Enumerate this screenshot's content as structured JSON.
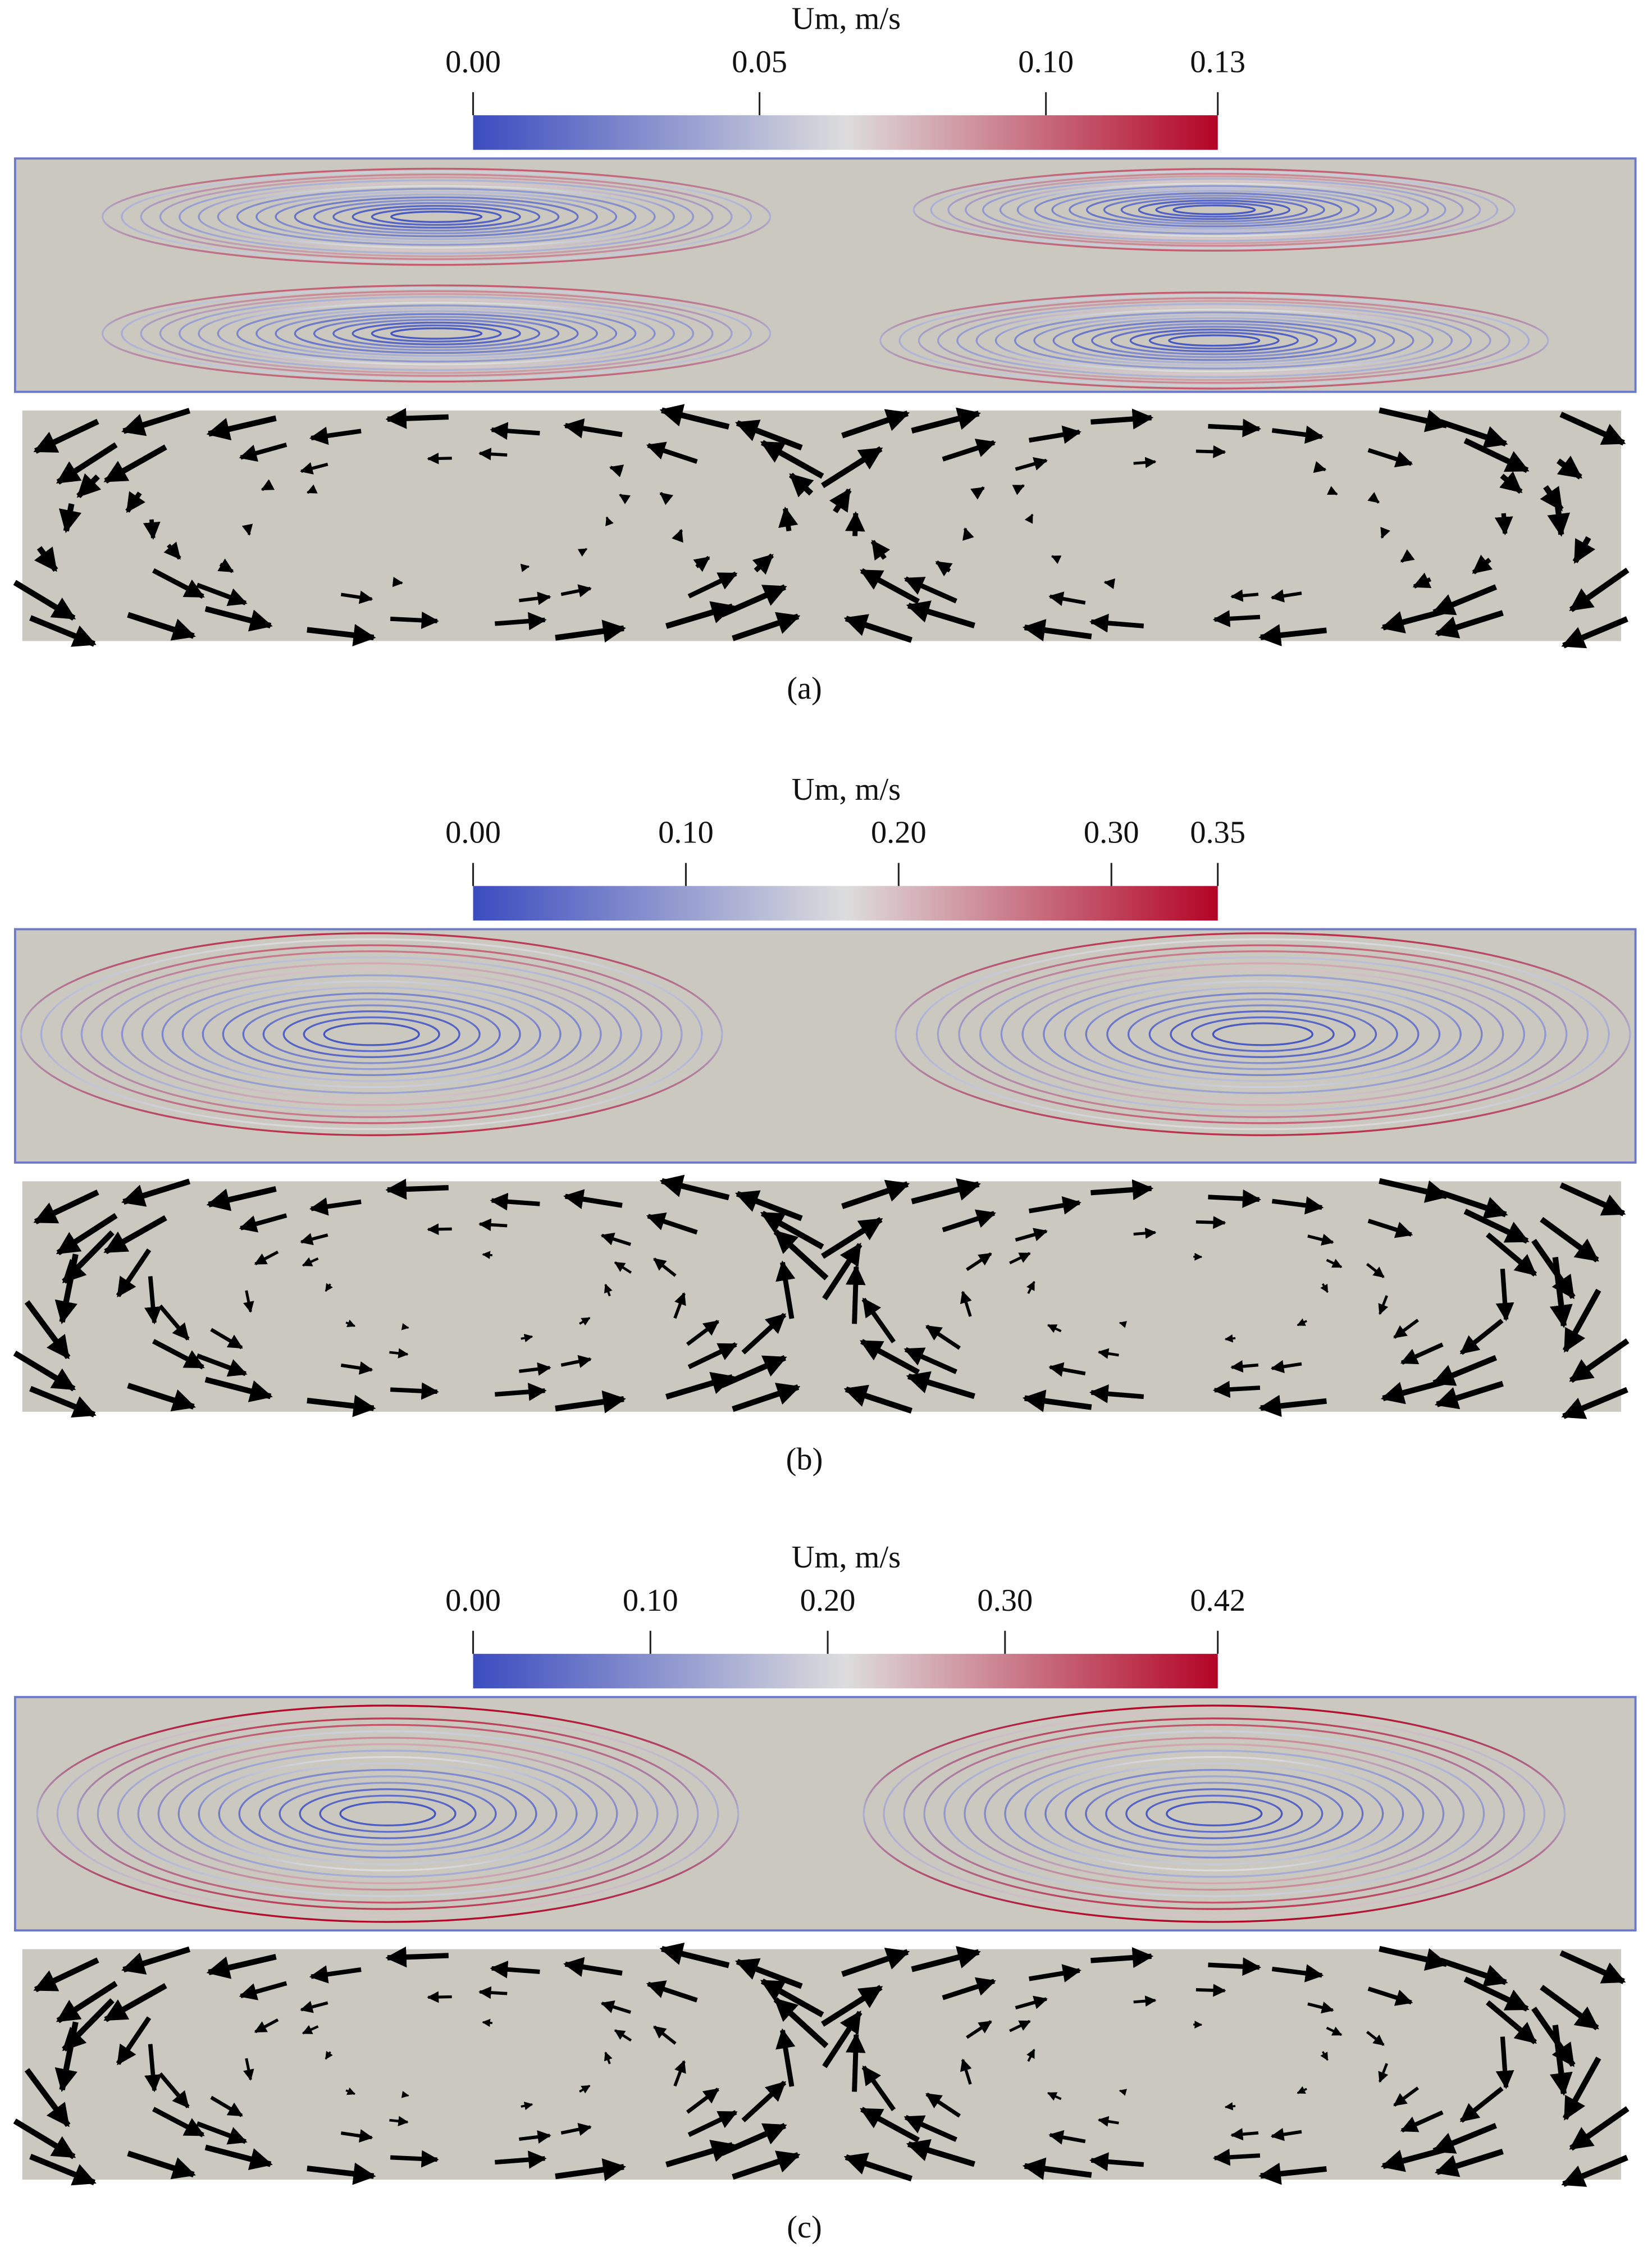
{
  "chart_data": [
    {
      "type": "colormap-flow",
      "title": "Um, m/s",
      "caption": "(a)",
      "colormap": [
        "#3b4cc0",
        "#dddddd",
        "#b40426"
      ],
      "xlim": [
        0,
        0.13
      ],
      "xticks": [
        {
          "value": 0,
          "label": "0.00"
        },
        {
          "value": 0.05,
          "label": "0.05"
        },
        {
          "value": 0.1,
          "label": "0.10"
        },
        {
          "value": 0.13,
          "label": "0.13"
        }
      ]
    },
    {
      "type": "colormap-flow",
      "title": "Um, m/s",
      "caption": "(b)",
      "colormap": [
        "#3b4cc0",
        "#dddddd",
        "#b40426"
      ],
      "xlim": [
        0,
        0.35
      ],
      "xticks": [
        {
          "value": 0,
          "label": "0.00"
        },
        {
          "value": 0.1,
          "label": "0.10"
        },
        {
          "value": 0.2,
          "label": "0.20"
        },
        {
          "value": 0.3,
          "label": "0.30"
        },
        {
          "value": 0.35,
          "label": "0.35"
        }
      ]
    },
    {
      "type": "colormap-flow",
      "title": "Um, m/s",
      "caption": "(c)",
      "colormap": [
        "#3b4cc0",
        "#dddddd",
        "#b40426"
      ],
      "xlim": [
        0,
        0.42
      ],
      "xticks": [
        {
          "value": 0,
          "label": "0.00"
        },
        {
          "value": 0.1,
          "label": "0.10"
        },
        {
          "value": 0.2,
          "label": "0.20"
        },
        {
          "value": 0.3,
          "label": "0.30"
        },
        {
          "value": 0.42,
          "label": "0.42"
        }
      ]
    }
  ]
}
